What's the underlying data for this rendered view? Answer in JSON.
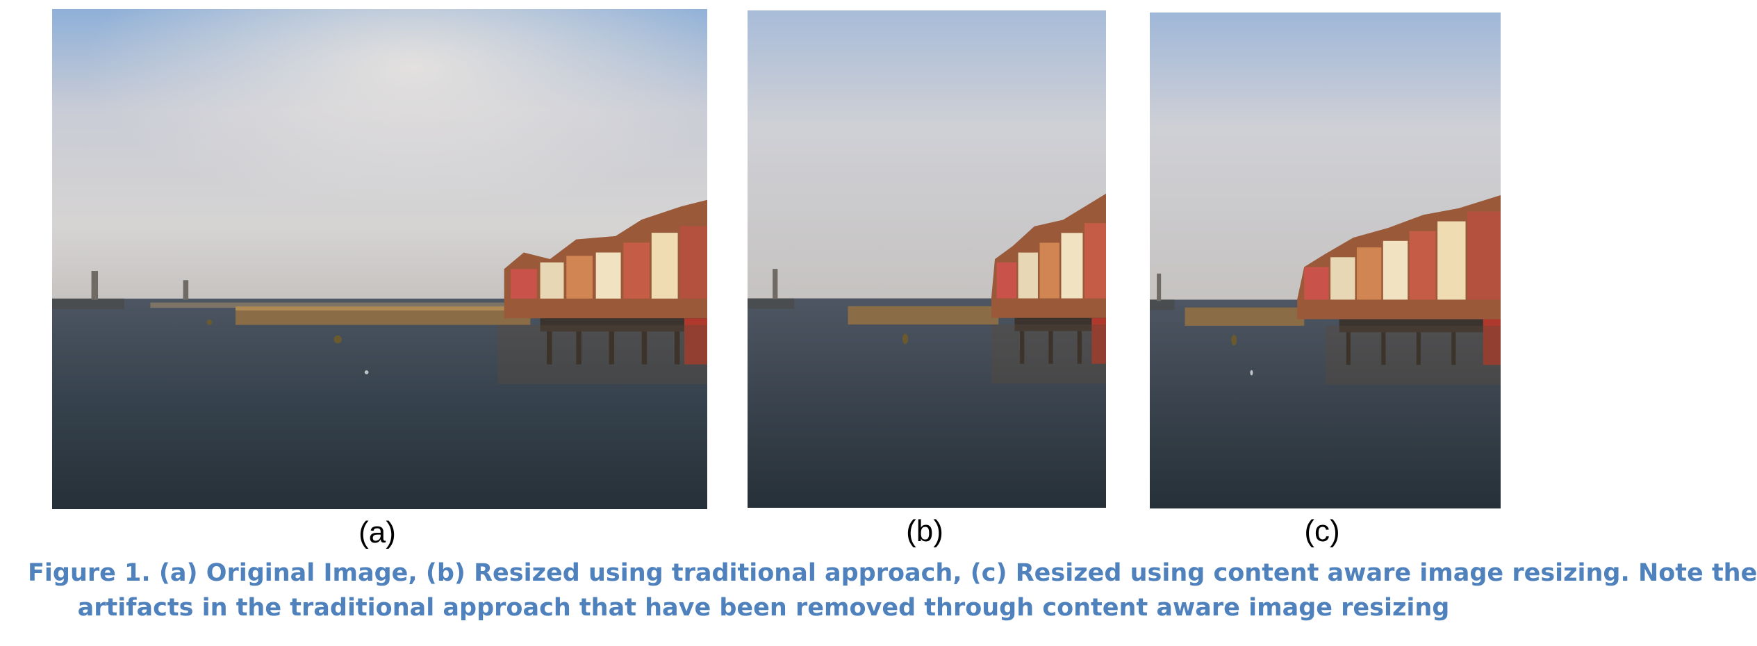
{
  "figure": {
    "panels": [
      {
        "id": "a",
        "label": "(a)",
        "image": "harbor-photo-original"
      },
      {
        "id": "b",
        "label": "(b)",
        "image": "harbor-photo-traditional-resize"
      },
      {
        "id": "c",
        "label": "(c)",
        "image": "harbor-photo-content-aware-resize"
      }
    ],
    "caption_line1": "Figure 1. (a) Original Image, (b) Resized using traditional approach, (c) Resized using content aware image resizing. Note the",
    "caption_line2": "artifacts in the traditional approach that have been removed through content aware image resizing",
    "caption_color": "#4f81bd"
  }
}
